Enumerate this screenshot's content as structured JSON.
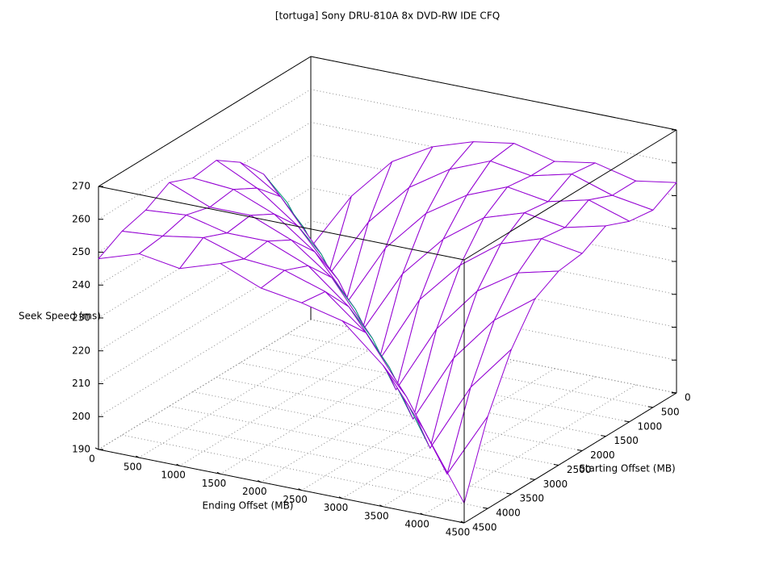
{
  "chart_data": {
    "type": "surface",
    "title": "[tortuga] Sony DRU-810A 8x DVD-RW IDE CFQ",
    "x_label": "Ending Offset (MB)",
    "y_label": "Starting Offset (MB)",
    "z_label": "Seek Speed (ms)",
    "x": [
      0,
      500,
      1000,
      1500,
      2000,
      2500,
      3000,
      3500,
      4000,
      4500
    ],
    "y": [
      0,
      500,
      1000,
      1500,
      2000,
      2500,
      3000,
      3500,
      4000,
      4500
    ],
    "z": [
      [
        212,
        230,
        243,
        250,
        254,
        256,
        253,
        255,
        252,
        254
      ],
      [
        230,
        210,
        229,
        242,
        250,
        255,
        253,
        256,
        252,
        250
      ],
      [
        243,
        229,
        208,
        228,
        241,
        249,
        254,
        252,
        255,
        251
      ],
      [
        251,
        243,
        228,
        207,
        227,
        240,
        249,
        253,
        251,
        254
      ],
      [
        256,
        250,
        241,
        227,
        205,
        226,
        239,
        248,
        252,
        250
      ],
      [
        255,
        254,
        249,
        240,
        225,
        203,
        224,
        238,
        246,
        249
      ],
      [
        258,
        253,
        253,
        248,
        239,
        223,
        201,
        222,
        236,
        245
      ],
      [
        254,
        255,
        252,
        252,
        247,
        237,
        221,
        199,
        220,
        234
      ],
      [
        252,
        253,
        255,
        251,
        250,
        246,
        236,
        219,
        198,
        218
      ],
      [
        248,
        252,
        250,
        254,
        249,
        247,
        244,
        233,
        216,
        196
      ]
    ],
    "top_color": "#9400d3",
    "bottom_color": "#009e73",
    "xlim": [
      0,
      4500
    ],
    "ylim": [
      0,
      4500
    ],
    "zlim": [
      190,
      270
    ],
    "xticks": [
      0,
      500,
      1000,
      1500,
      2000,
      2500,
      3000,
      3500,
      4000,
      4500
    ],
    "yticks": [
      0,
      500,
      1000,
      1500,
      2000,
      2500,
      3000,
      3500,
      4000,
      4500
    ],
    "zticks": [
      190,
      200,
      210,
      220,
      230,
      240,
      250,
      260,
      270
    ],
    "grid": true
  }
}
